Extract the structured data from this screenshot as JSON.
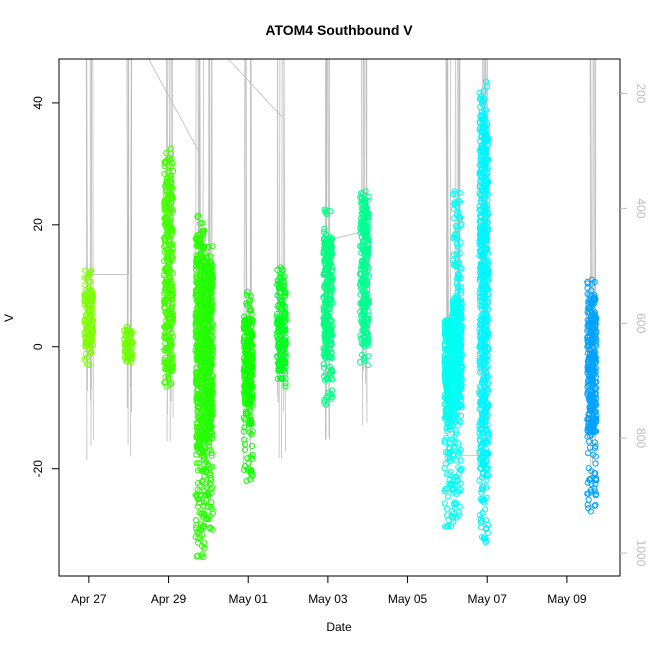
{
  "chart_data": {
    "type": "scatter",
    "title": "ATOM4 Southbound V",
    "xlabel": "Date",
    "ylabel": "V",
    "x_axis": {
      "kind": "date",
      "range": [
        "2017-04-26T06:00",
        "2017-05-10T08:00"
      ],
      "ticks": [
        {
          "x": "2017-04-27",
          "label": "Apr 27"
        },
        {
          "x": "2017-04-29",
          "label": "Apr 29"
        },
        {
          "x": "2017-05-01",
          "label": "May 01"
        },
        {
          "x": "2017-05-03",
          "label": "May 03"
        },
        {
          "x": "2017-05-05",
          "label": "May 05"
        },
        {
          "x": "2017-05-07",
          "label": "May 07"
        },
        {
          "x": "2017-05-09",
          "label": "May 09"
        }
      ]
    },
    "y_axis": {
      "range": [
        -37.6,
        47.2
      ],
      "ticks": [
        {
          "v": -20,
          "label": "-20"
        },
        {
          "v": 0,
          "label": "0"
        },
        {
          "v": 20,
          "label": "20"
        },
        {
          "v": 40,
          "label": "40"
        }
      ]
    },
    "y2_axis": {
      "side": "right",
      "color": "#bdbdbd",
      "inverted": true,
      "range": [
        1040,
        140
      ],
      "ticks": [
        {
          "v": 200,
          "label": "200"
        },
        {
          "v": 400,
          "label": "400"
        },
        {
          "v": 600,
          "label": "600"
        },
        {
          "v": 800,
          "label": "800"
        },
        {
          "v": 1000,
          "label": "1000"
        }
      ]
    },
    "grid": false,
    "marker": "open-circle",
    "series": [
      {
        "x": "2017-04-27T00:00",
        "ymin": -3,
        "ymax": 12.5,
        "color": "#7fff00",
        "dense": [
          0,
          9
        ]
      },
      {
        "x": "2017-04-28T00:00",
        "ymin": -2.5,
        "ymax": 3.3,
        "color": "#6fff00",
        "dense": [
          -2,
          2.5
        ]
      },
      {
        "x": "2017-04-29T00:00",
        "ymin": -6.5,
        "ymax": 32.5,
        "color": "#44ff00",
        "dense": [
          -4,
          28
        ]
      },
      {
        "x": "2017-04-29T19:00",
        "ymin": -34.5,
        "ymax": 21.5,
        "color": "#2aff00",
        "dense": [
          -18,
          18
        ]
      },
      {
        "x": "2017-04-30T00:00",
        "ymin": -30,
        "ymax": 16.5,
        "color": "#22ff00",
        "dense": [
          -15,
          14
        ]
      },
      {
        "x": "2017-05-01T00:00",
        "ymin": -22,
        "ymax": 9,
        "color": "#10ff00",
        "dense": [
          -10,
          5
        ]
      },
      {
        "x": "2017-05-01T20:00",
        "ymin": -6.5,
        "ymax": 13,
        "color": "#00ff20",
        "dense": [
          -4,
          11
        ]
      },
      {
        "x": "2017-05-03T00:00",
        "ymin": -9.5,
        "ymax": 22.5,
        "color": "#00ff80",
        "dense": [
          -2,
          18
        ]
      },
      {
        "x": "2017-05-03T22:00",
        "ymin": -3,
        "ymax": 25.5,
        "color": "#00ff90",
        "dense": [
          0,
          24
        ]
      },
      {
        "x": "2017-05-06T01:00",
        "ymin": -29.5,
        "ymax": 5,
        "color": "#00ffee",
        "dense": [
          -12,
          4
        ]
      },
      {
        "x": "2017-05-06T06:00",
        "ymin": -28,
        "ymax": 25.5,
        "color": "#00fff5",
        "dense": [
          -10,
          8
        ]
      },
      {
        "x": "2017-05-06T22:00",
        "ymin": -32,
        "ymax": 43.5,
        "color": "#00f5ff",
        "dense": [
          -20,
          38
        ]
      },
      {
        "x": "2017-05-09T15:00",
        "ymin": -27,
        "ymax": 11,
        "color": "#00a2ff",
        "dense": [
          -14,
          8
        ]
      }
    ],
    "pressure_trace": {
      "color": "#bdbdbd",
      "axis": "y2",
      "note": "grey vertical profile lines on right axis"
    }
  }
}
